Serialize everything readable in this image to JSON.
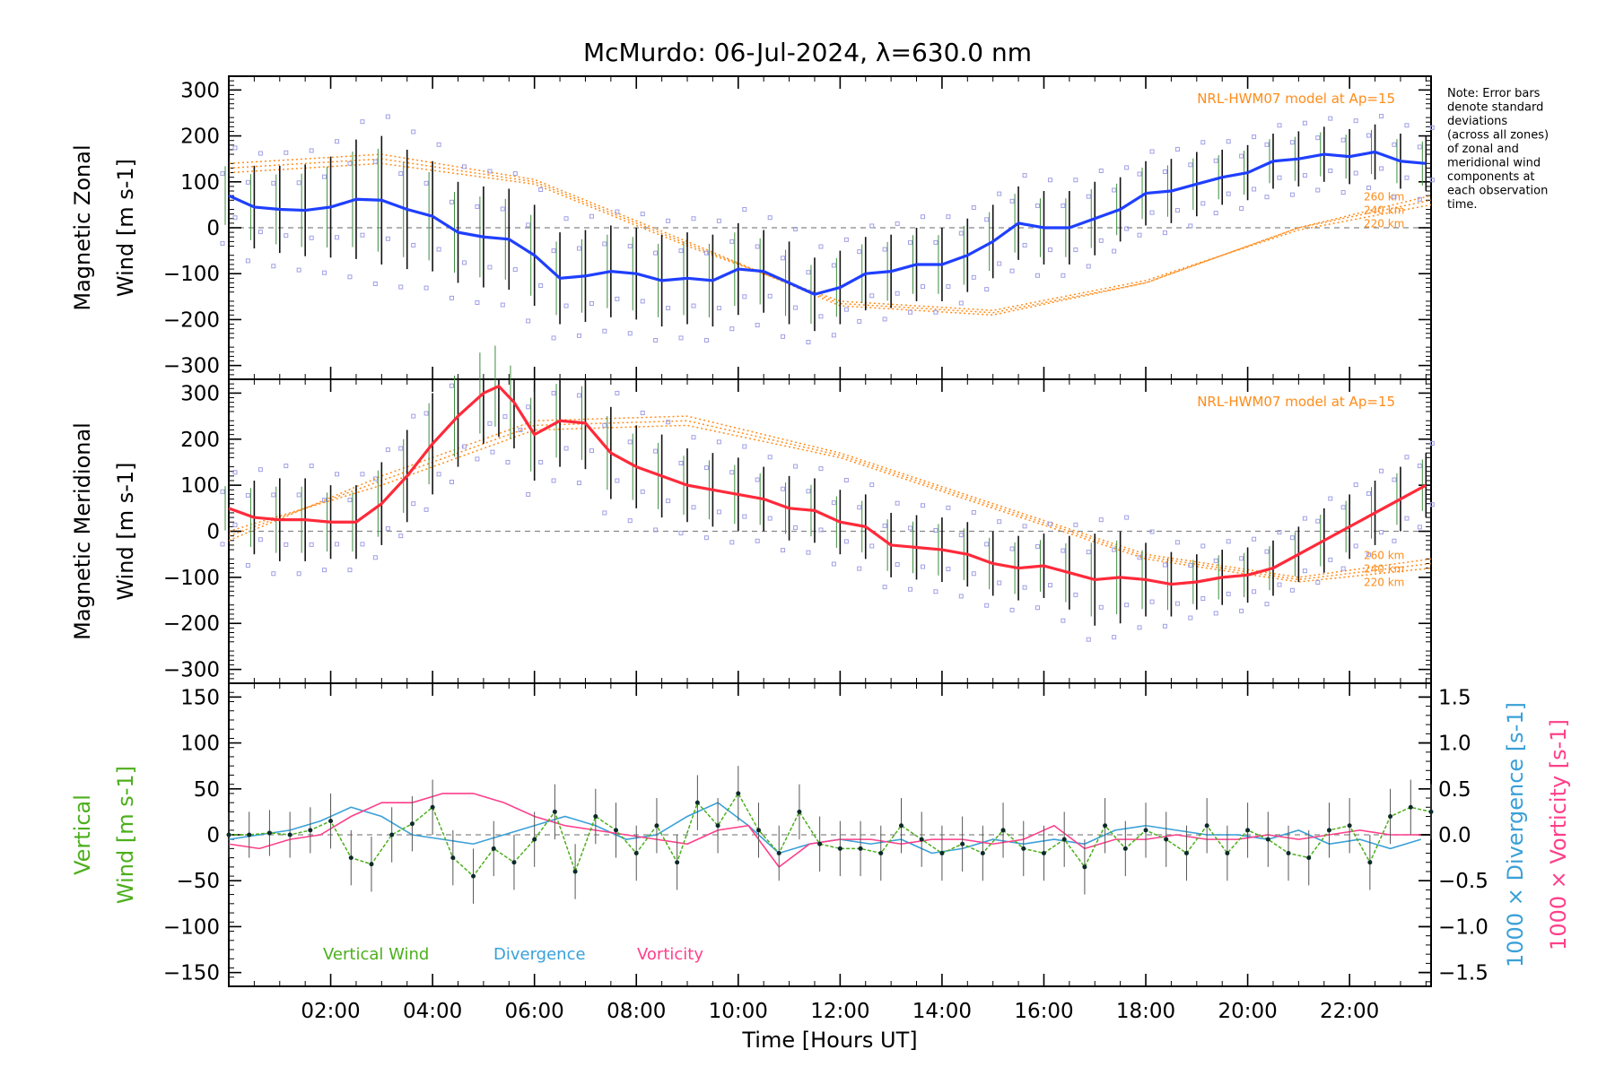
{
  "title": "McMurdo: 06-Jul-2024, λ=630.0 nm",
  "note": [
    "Note: Error bars",
    "denote standard",
    "deviations",
    "(across all zones)",
    "of zonal and",
    "meridional wind",
    "components at",
    "each observation",
    "time."
  ],
  "colors": {
    "zonal": "#1f3fff",
    "meridional": "#ff2a3a",
    "model": "#ff8c1a",
    "vertical": "#4caf1c",
    "divergence": "#3aa0d8",
    "vorticity": "#ff3f8a",
    "errorbar": "#111111",
    "zone_points": "#9f9fe6",
    "zero_line": "#888888"
  },
  "chart_data": [
    {
      "type": "line",
      "panel": "zonal",
      "ylabel": "Magnetic Zonal Wind [m s-1]",
      "ylim": [
        -330,
        330
      ],
      "yticks": [
        -300,
        -200,
        -100,
        0,
        100,
        200,
        300
      ],
      "xlim": [
        0,
        23.6
      ],
      "model_label": "NRL-HWM07 model at Ap=15",
      "model_altitudes": [
        "260 km",
        "240 km",
        "220 km"
      ],
      "series": [
        {
          "role": "observed",
          "x": [
            0.0,
            0.5,
            1.0,
            1.5,
            2.0,
            2.5,
            3.0,
            3.5,
            4.0,
            4.5,
            5.0,
            5.5,
            6.0,
            6.5,
            7.0,
            7.5,
            8.0,
            8.5,
            9.0,
            9.5,
            10.0,
            10.5,
            11.0,
            11.5,
            12.0,
            12.5,
            13.0,
            13.5,
            14.0,
            14.5,
            15.0,
            15.5,
            16.0,
            16.5,
            17.0,
            17.5,
            18.0,
            18.5,
            19.0,
            19.5,
            20.0,
            20.5,
            21.0,
            21.5,
            22.0,
            22.5,
            23.0,
            23.5
          ],
          "y": [
            70,
            45,
            40,
            38,
            45,
            62,
            60,
            40,
            25,
            -10,
            -20,
            -25,
            -60,
            -110,
            -105,
            -95,
            -100,
            -115,
            -110,
            -115,
            -90,
            -95,
            -120,
            -145,
            -130,
            -100,
            -95,
            -80,
            -80,
            -60,
            -30,
            10,
            0,
            0,
            20,
            40,
            75,
            80,
            95,
            110,
            120,
            145,
            150,
            160,
            155,
            165,
            145,
            140
          ],
          "err": [
            80,
            90,
            95,
            100,
            110,
            130,
            140,
            130,
            120,
            110,
            110,
            110,
            110,
            100,
            100,
            100,
            100,
            100,
            100,
            100,
            100,
            90,
            90,
            80,
            80,
            80,
            80,
            80,
            80,
            80,
            80,
            80,
            80,
            80,
            80,
            70,
            70,
            70,
            70,
            60,
            60,
            60,
            60,
            60,
            60,
            60,
            60,
            60
          ]
        },
        {
          "role": "model",
          "name": "260 km",
          "x": [
            0,
            3,
            6,
            9,
            12,
            15,
            18,
            21,
            23.6
          ],
          "y": [
            140,
            160,
            105,
            -30,
            -170,
            -190,
            -120,
            0,
            70
          ]
        },
        {
          "role": "model",
          "name": "240 km",
          "x": [
            0,
            3,
            6,
            9,
            12,
            15,
            18,
            21,
            23.6
          ],
          "y": [
            130,
            150,
            100,
            -35,
            -165,
            -185,
            -120,
            0,
            60
          ]
        },
        {
          "role": "model",
          "name": "220 km",
          "x": [
            0,
            3,
            6,
            9,
            12,
            15,
            18,
            21,
            23.6
          ],
          "y": [
            120,
            140,
            95,
            -40,
            -160,
            -180,
            -115,
            -5,
            50
          ]
        }
      ]
    },
    {
      "type": "line",
      "panel": "meridional",
      "ylabel": "Magnetic Meridional Wind [m s-1]",
      "ylim": [
        -330,
        330
      ],
      "yticks": [
        -300,
        -200,
        -100,
        0,
        100,
        200,
        300
      ],
      "xlim": [
        0,
        23.6
      ],
      "model_label": "NRL-HWM07 model at Ap=15",
      "model_altitudes": [
        "260 km",
        "240 km",
        "220 km"
      ],
      "series": [
        {
          "role": "observed",
          "x": [
            0.0,
            0.5,
            1.0,
            1.5,
            2.0,
            2.5,
            3.0,
            3.5,
            4.0,
            4.5,
            5.0,
            5.3,
            5.6,
            6.0,
            6.5,
            7.0,
            7.5,
            8.0,
            8.5,
            9.0,
            9.5,
            10.0,
            10.5,
            11.0,
            11.5,
            12.0,
            12.5,
            13.0,
            13.5,
            14.0,
            14.5,
            15.0,
            15.5,
            16.0,
            16.5,
            17.0,
            17.5,
            18.0,
            18.5,
            19.0,
            19.5,
            20.0,
            20.5,
            21.0,
            21.5,
            22.0,
            22.5,
            23.0,
            23.5
          ],
          "y": [
            50,
            30,
            25,
            25,
            20,
            20,
            60,
            120,
            190,
            250,
            300,
            315,
            280,
            210,
            240,
            235,
            170,
            140,
            120,
            100,
            90,
            80,
            70,
            50,
            45,
            20,
            10,
            -30,
            -35,
            -40,
            -50,
            -70,
            -80,
            -75,
            -90,
            -105,
            -100,
            -105,
            -115,
            -110,
            -100,
            -95,
            -80,
            -50,
            -20,
            10,
            40,
            70,
            100
          ],
          "err": [
            60,
            80,
            90,
            90,
            80,
            80,
            90,
            100,
            110,
            110,
            110,
            110,
            100,
            100,
            100,
            100,
            100,
            90,
            90,
            80,
            80,
            80,
            70,
            70,
            70,
            70,
            70,
            70,
            70,
            70,
            70,
            70,
            70,
            70,
            80,
            100,
            100,
            80,
            70,
            60,
            60,
            60,
            60,
            60,
            70,
            70,
            70,
            70,
            70
          ]
        },
        {
          "role": "model",
          "name": "260 km",
          "x": [
            0,
            3,
            6,
            9,
            12,
            15,
            18,
            21,
            23.6
          ],
          "y": [
            -20,
            120,
            240,
            250,
            170,
            60,
            -50,
            -100,
            -60
          ]
        },
        {
          "role": "model",
          "name": "240 km",
          "x": [
            0,
            3,
            6,
            9,
            12,
            15,
            18,
            21,
            23.6
          ],
          "y": [
            -10,
            110,
            230,
            240,
            165,
            55,
            -55,
            -105,
            -70
          ]
        },
        {
          "role": "model",
          "name": "220 km",
          "x": [
            0,
            3,
            6,
            9,
            12,
            15,
            18,
            21,
            23.6
          ],
          "y": [
            0,
            100,
            220,
            230,
            160,
            50,
            -60,
            -110,
            -80
          ]
        }
      ]
    },
    {
      "type": "line",
      "panel": "vertical",
      "ylabel": "Vertical Wind [m s-1]",
      "ylim": [
        -165,
        165
      ],
      "yticks": [
        -150,
        -100,
        -50,
        0,
        50,
        100,
        150
      ],
      "xlim": [
        0,
        23.6
      ],
      "xlabel": "Time [Hours UT]",
      "xticks": [
        2,
        4,
        6,
        8,
        10,
        12,
        14,
        16,
        18,
        20,
        22
      ],
      "xtick_labels": [
        "02:00",
        "04:00",
        "06:00",
        "08:00",
        "10:00",
        "12:00",
        "14:00",
        "16:00",
        "18:00",
        "20:00",
        "22:00"
      ],
      "y2label_divergence": "1000 × Divergence [s-1]",
      "y2label_vorticity": "1000 × Vorticity [s-1]",
      "y2lim": [
        -1.65,
        1.65
      ],
      "y2ticks": [
        -1.5,
        -1.0,
        -0.5,
        0.0,
        0.5,
        1.0,
        1.5
      ],
      "legend": [
        "Vertical Wind",
        "Divergence",
        "Vorticity"
      ],
      "series": [
        {
          "name": "Vertical Wind",
          "axis": "left",
          "x": [
            0.0,
            0.4,
            0.8,
            1.2,
            1.6,
            2.0,
            2.4,
            2.8,
            3.2,
            3.6,
            4.0,
            4.4,
            4.8,
            5.2,
            5.6,
            6.0,
            6.4,
            6.8,
            7.2,
            7.6,
            8.0,
            8.4,
            8.8,
            9.2,
            9.6,
            10.0,
            10.4,
            10.8,
            11.2,
            11.6,
            12.0,
            12.4,
            12.8,
            13.2,
            13.6,
            14.0,
            14.4,
            14.8,
            15.2,
            15.6,
            16.0,
            16.4,
            16.8,
            17.2,
            17.6,
            18.0,
            18.4,
            18.8,
            19.2,
            19.6,
            20.0,
            20.4,
            20.8,
            21.2,
            21.6,
            22.0,
            22.4,
            22.8,
            23.2,
            23.6
          ],
          "y": [
            0,
            0,
            2,
            0,
            5,
            15,
            -25,
            -32,
            0,
            12,
            30,
            -25,
            -45,
            -15,
            -30,
            -5,
            25,
            -40,
            20,
            5,
            -20,
            10,
            -30,
            35,
            10,
            45,
            5,
            -20,
            25,
            -10,
            -15,
            -15,
            -20,
            10,
            -5,
            -20,
            -10,
            -20,
            5,
            -15,
            -20,
            -5,
            -35,
            10,
            -15,
            5,
            -5,
            -20,
            10,
            -20,
            5,
            -5,
            -20,
            -25,
            5,
            10,
            -30,
            20,
            30,
            25
          ],
          "err": [
            25,
            25,
            25,
            25,
            25,
            30,
            30,
            30,
            30,
            30,
            30,
            30,
            30,
            30,
            30,
            30,
            30,
            30,
            30,
            30,
            30,
            30,
            30,
            30,
            30,
            30,
            30,
            30,
            30,
            30,
            30,
            30,
            30,
            30,
            30,
            30,
            30,
            30,
            30,
            30,
            30,
            30,
            30,
            30,
            30,
            30,
            30,
            30,
            30,
            30,
            30,
            30,
            30,
            30,
            30,
            30,
            30,
            30,
            30,
            30
          ]
        },
        {
          "name": "Divergence",
          "axis": "right",
          "x": [
            0.0,
            0.6,
            1.2,
            1.8,
            2.4,
            3.0,
            3.6,
            4.2,
            4.8,
            5.4,
            6.0,
            6.6,
            7.2,
            7.8,
            8.4,
            9.0,
            9.6,
            10.2,
            10.8,
            11.4,
            12.0,
            12.6,
            13.2,
            13.8,
            14.4,
            15.0,
            15.6,
            16.2,
            16.8,
            17.4,
            18.0,
            18.6,
            19.2,
            19.8,
            20.4,
            21.0,
            21.6,
            22.2,
            22.8,
            23.4
          ],
          "y": [
            -0.05,
            0.0,
            0.05,
            0.15,
            0.3,
            0.2,
            0.0,
            -0.05,
            -0.1,
            0.0,
            0.1,
            0.2,
            0.1,
            -0.05,
            0.0,
            0.2,
            0.35,
            0.1,
            -0.2,
            -0.1,
            -0.05,
            -0.1,
            -0.05,
            -0.2,
            -0.15,
            -0.05,
            -0.1,
            -0.05,
            -0.1,
            0.05,
            0.1,
            0.05,
            0.0,
            0.0,
            -0.05,
            0.05,
            -0.1,
            -0.05,
            -0.15,
            -0.05
          ]
        },
        {
          "name": "Vorticity",
          "axis": "right",
          "x": [
            0.0,
            0.6,
            1.2,
            1.8,
            2.4,
            3.0,
            3.6,
            4.2,
            4.8,
            5.4,
            6.0,
            6.6,
            7.2,
            7.8,
            8.4,
            9.0,
            9.6,
            10.2,
            10.8,
            11.4,
            12.0,
            12.6,
            13.2,
            13.8,
            14.4,
            15.0,
            15.6,
            16.2,
            16.8,
            17.4,
            18.0,
            18.6,
            19.2,
            19.8,
            20.4,
            21.0,
            21.6,
            22.2,
            22.8,
            23.4
          ],
          "y": [
            -0.1,
            -0.15,
            -0.05,
            0.0,
            0.2,
            0.35,
            0.35,
            0.45,
            0.45,
            0.35,
            0.2,
            0.1,
            0.05,
            0.0,
            -0.05,
            -0.1,
            0.05,
            0.1,
            -0.35,
            -0.1,
            -0.05,
            -0.05,
            -0.1,
            -0.05,
            -0.05,
            -0.1,
            -0.05,
            0.1,
            -0.15,
            -0.05,
            -0.05,
            0.0,
            -0.05,
            -0.05,
            0.0,
            -0.05,
            0.0,
            0.05,
            0.0,
            0.0
          ]
        }
      ]
    }
  ]
}
